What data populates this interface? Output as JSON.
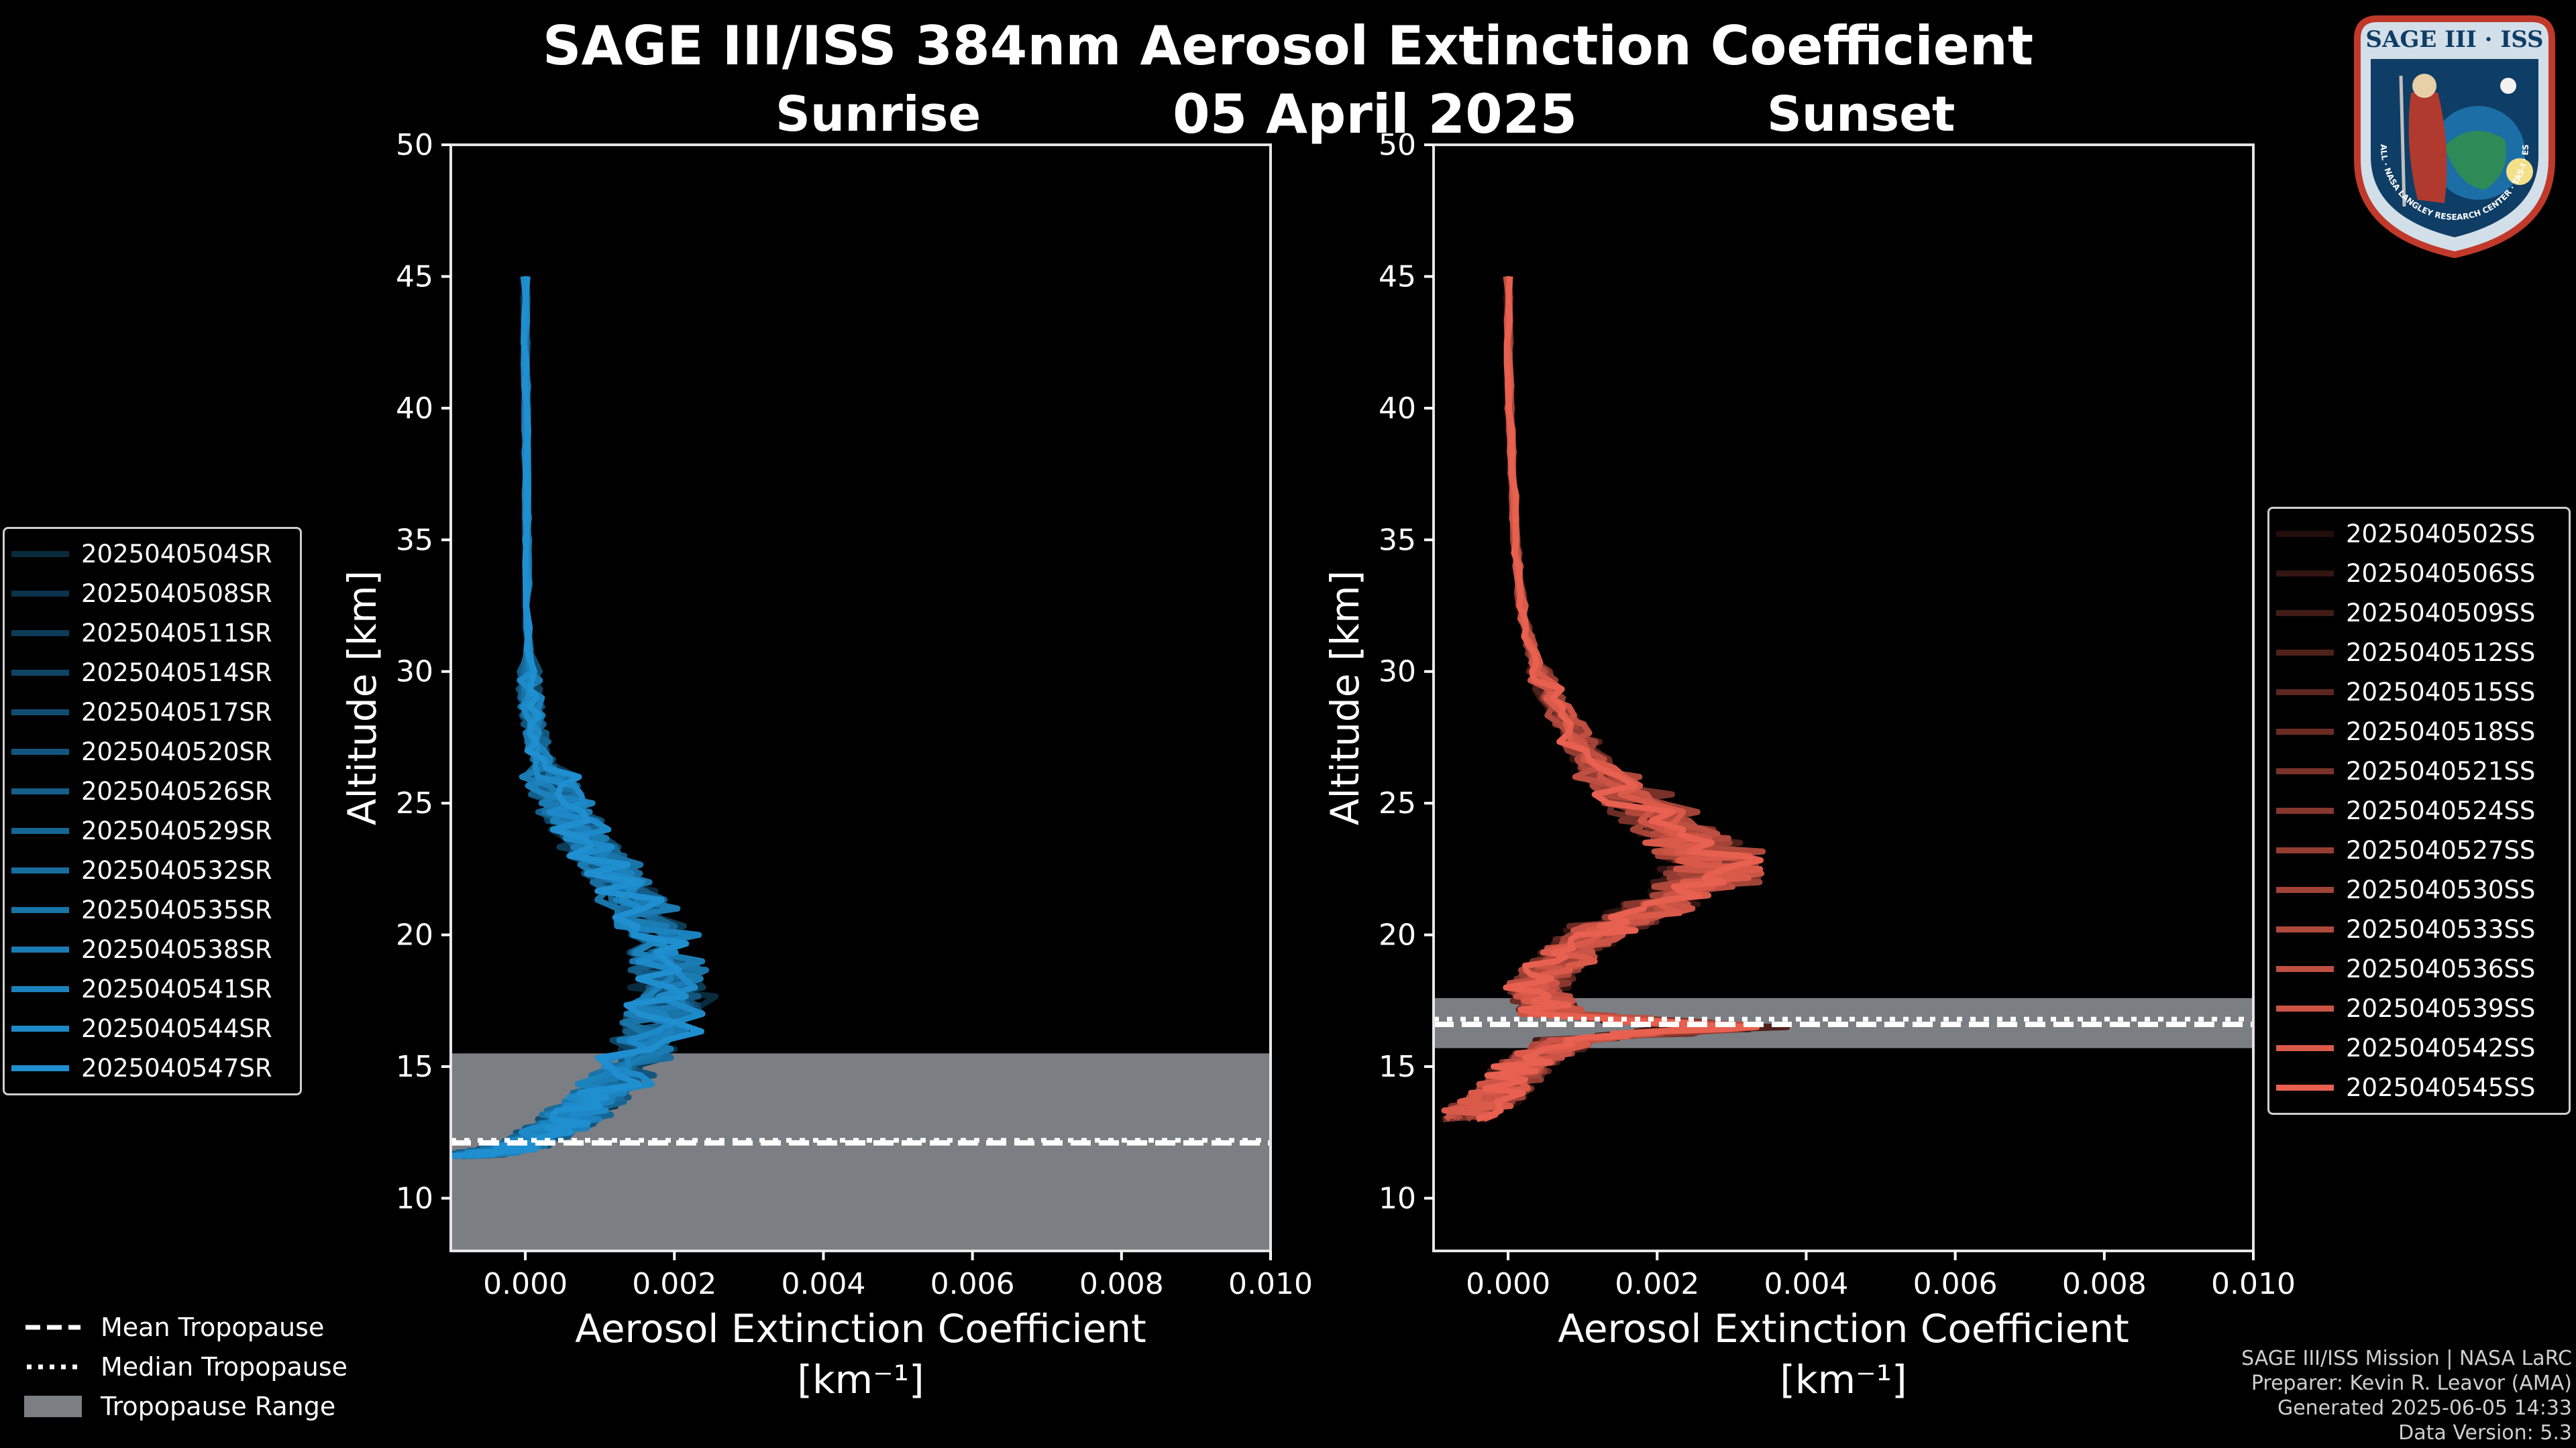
{
  "title": "SAGE III/ISS 384nm Aerosol Extinction Coefficient",
  "date": "05 April 2025",
  "footer": {
    "line1": "SAGE III/ISS Mission | NASA LaRC",
    "line2": "Preparer: Kevin R. Leavor (AMA)",
    "line3": "Generated 2025-06-05 14:33",
    "line4": "Data Version: 5.3"
  },
  "logo": {
    "top_text": "SAGE III · ISS",
    "ring_text": "BALL · NASA LANGLEY RESEARCH CENTER · TAS-I · ESA"
  },
  "tropo_legend": {
    "mean": "Mean Tropopause",
    "median": "Median Tropopause",
    "range": "Tropopause Range"
  },
  "colors": {
    "sunrise": "#1f8fd0",
    "sunset": "#e8604f",
    "range": "#7b7e82",
    "background": "#000000"
  },
  "chart_data": [
    {
      "type": "line",
      "panel": "Sunrise",
      "title": "Sunrise",
      "xlabel": "Aerosol Extinction Coefficient",
      "xunits": "[km⁻¹]",
      "ylabel": "Altitude [km]",
      "xlim": [
        -0.001,
        0.01
      ],
      "ylim": [
        8,
        50
      ],
      "xticks": [
        0.0,
        0.002,
        0.004,
        0.006,
        0.008,
        0.01
      ],
      "xtick_labels": [
        "0.000",
        "0.002",
        "0.004",
        "0.006",
        "0.008",
        "0.010"
      ],
      "yticks": [
        10,
        15,
        20,
        25,
        30,
        35,
        40,
        45,
        50
      ],
      "tropopause": {
        "mean": 12.1,
        "median": 12.2,
        "range": [
          8,
          15.5
        ]
      },
      "base_profile": [
        [
          45,
          0.0
        ],
        [
          40,
          1e-05
        ],
        [
          35,
          2e-05
        ],
        [
          30,
          5e-05
        ],
        [
          28,
          0.0001
        ],
        [
          26,
          0.0003
        ],
        [
          24,
          0.0007
        ],
        [
          22,
          0.0013
        ],
        [
          20,
          0.0018
        ],
        [
          18,
          0.002
        ],
        [
          16,
          0.0017
        ],
        [
          14,
          0.0011
        ],
        [
          13,
          0.0006
        ],
        [
          12,
          0.0
        ],
        [
          11.6,
          -0.0008
        ]
      ],
      "series": [
        {
          "name": "2025040504SR",
          "shade": 0.3
        },
        {
          "name": "2025040508SR",
          "shade": 0.36
        },
        {
          "name": "2025040511SR",
          "shade": 0.42
        },
        {
          "name": "2025040514SR",
          "shade": 0.48
        },
        {
          "name": "2025040517SR",
          "shade": 0.54
        },
        {
          "name": "2025040520SR",
          "shade": 0.6
        },
        {
          "name": "2025040526SR",
          "shade": 0.66
        },
        {
          "name": "2025040529SR",
          "shade": 0.71
        },
        {
          "name": "2025040532SR",
          "shade": 0.76
        },
        {
          "name": "2025040535SR",
          "shade": 0.81
        },
        {
          "name": "2025040538SR",
          "shade": 0.86
        },
        {
          "name": "2025040541SR",
          "shade": 0.91
        },
        {
          "name": "2025040544SR",
          "shade": 0.96
        },
        {
          "name": "2025040547SR",
          "shade": 1.0
        }
      ]
    },
    {
      "type": "line",
      "panel": "Sunset",
      "title": "Sunset",
      "xlabel": "Aerosol Extinction Coefficient",
      "xunits": "[km⁻¹]",
      "ylabel": "Altitude [km]",
      "xlim": [
        -0.001,
        0.01
      ],
      "ylim": [
        8,
        50
      ],
      "xticks": [
        0.0,
        0.002,
        0.004,
        0.006,
        0.008,
        0.01
      ],
      "xtick_labels": [
        "0.000",
        "0.002",
        "0.004",
        "0.006",
        "0.008",
        "0.010"
      ],
      "yticks": [
        10,
        15,
        20,
        25,
        30,
        35,
        40,
        45,
        50
      ],
      "tropopause": {
        "mean": 16.6,
        "median": 16.8,
        "range": [
          15.7,
          17.6
        ]
      },
      "base_profile": [
        [
          45,
          0.0
        ],
        [
          40,
          2e-05
        ],
        [
          35,
          0.0001
        ],
        [
          32,
          0.0002
        ],
        [
          30,
          0.0004
        ],
        [
          28,
          0.0008
        ],
        [
          26,
          0.0013
        ],
        [
          24,
          0.0022
        ],
        [
          23,
          0.0028
        ],
        [
          22,
          0.0027
        ],
        [
          21,
          0.0019
        ],
        [
          20,
          0.0011
        ],
        [
          19,
          0.0007
        ],
        [
          18,
          0.0004
        ],
        [
          17,
          0.0006
        ],
        [
          16.5,
          0.003
        ],
        [
          16,
          0.0008
        ],
        [
          15,
          0.0002
        ],
        [
          14,
          -0.0001
        ],
        [
          13,
          -0.0006
        ]
      ],
      "series": [
        {
          "name": "2025040502SS",
          "shade": 0.15
        },
        {
          "name": "2025040506SS",
          "shade": 0.22
        },
        {
          "name": "2025040509SS",
          "shade": 0.28
        },
        {
          "name": "2025040512SS",
          "shade": 0.34
        },
        {
          "name": "2025040515SS",
          "shade": 0.4
        },
        {
          "name": "2025040518SS",
          "shade": 0.46
        },
        {
          "name": "2025040521SS",
          "shade": 0.52
        },
        {
          "name": "2025040524SS",
          "shade": 0.58
        },
        {
          "name": "2025040527SS",
          "shade": 0.64
        },
        {
          "name": "2025040530SS",
          "shade": 0.7
        },
        {
          "name": "2025040533SS",
          "shade": 0.76
        },
        {
          "name": "2025040536SS",
          "shade": 0.82
        },
        {
          "name": "2025040539SS",
          "shade": 0.88
        },
        {
          "name": "2025040542SS",
          "shade": 0.94
        },
        {
          "name": "2025040545SS",
          "shade": 1.0
        }
      ]
    }
  ]
}
